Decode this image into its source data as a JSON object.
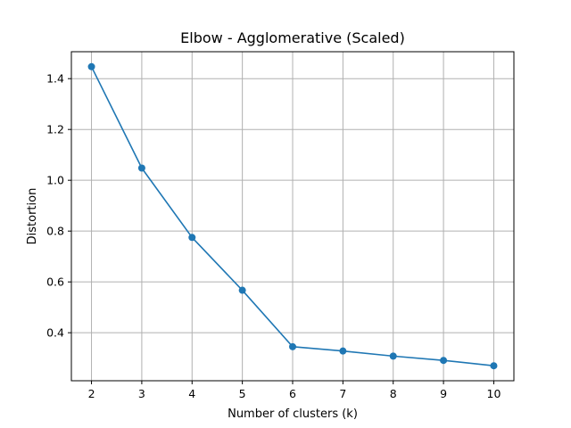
{
  "chart_data": {
    "type": "line",
    "title": "Elbow - Agglomerative (Scaled)",
    "xlabel": "Number of clusters (k)",
    "ylabel": "Distortion",
    "x": [
      2,
      3,
      4,
      5,
      6,
      7,
      8,
      9,
      10
    ],
    "series": [
      {
        "values": [
          1.447,
          1.048,
          0.775,
          0.567,
          0.345,
          0.328,
          0.308,
          0.291,
          0.27
        ]
      }
    ],
    "xticks": [
      2,
      3,
      4,
      5,
      6,
      7,
      8,
      9,
      10
    ],
    "xtick_labels": [
      "2",
      "3",
      "4",
      "5",
      "6",
      "7",
      "8",
      "9",
      "10"
    ],
    "yticks": [
      0.4,
      0.6,
      0.8,
      1.0,
      1.2,
      1.4
    ],
    "ytick_labels": [
      "0.4",
      "0.6",
      "0.8",
      "1.0",
      "1.2",
      "1.4"
    ],
    "xlim": [
      1.6,
      10.4
    ],
    "ylim": [
      0.211,
      1.506
    ],
    "grid": true,
    "line_color": "#1f77b4",
    "grid_color": "#b0b0b0"
  }
}
